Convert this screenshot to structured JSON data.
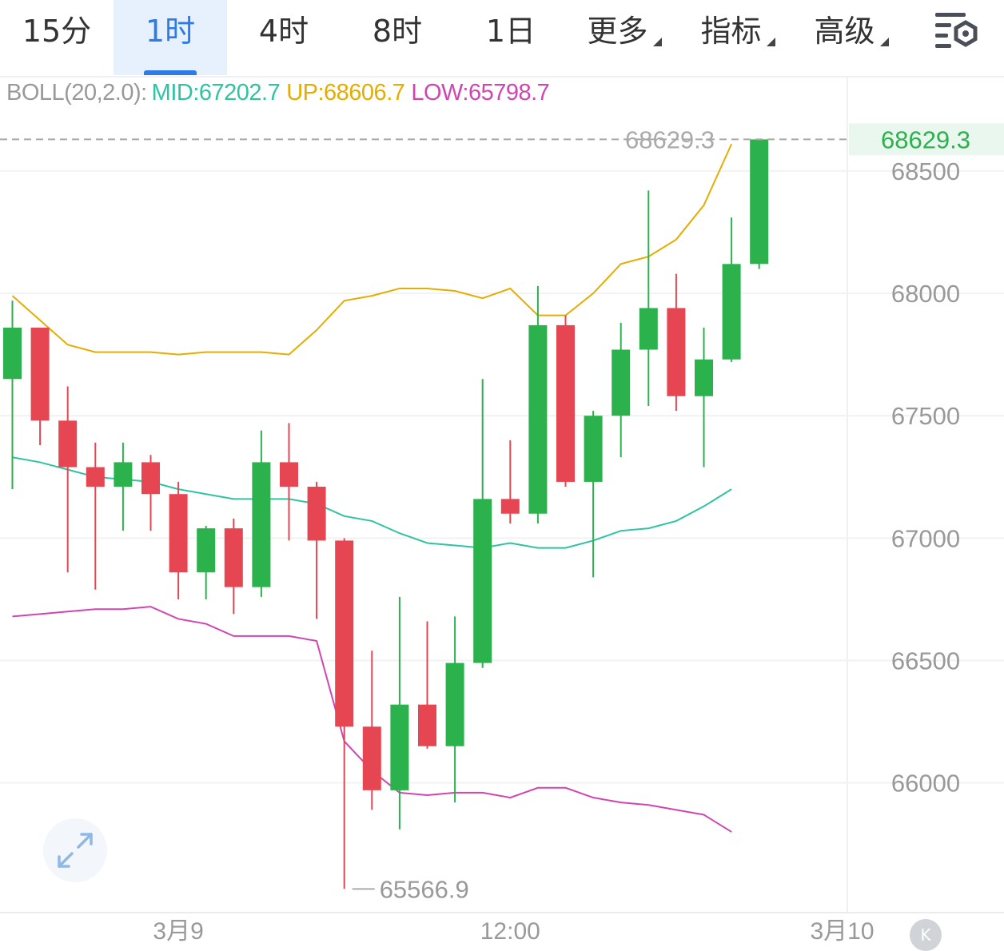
{
  "tabs": [
    {
      "label": "15分",
      "active": false,
      "dropdown": false
    },
    {
      "label": "1时",
      "active": true,
      "dropdown": false
    },
    {
      "label": "4时",
      "active": false,
      "dropdown": false
    },
    {
      "label": "8时",
      "active": false,
      "dropdown": false
    },
    {
      "label": "1日",
      "active": false,
      "dropdown": false
    },
    {
      "label": "更多",
      "active": false,
      "dropdown": true
    },
    {
      "label": "指标",
      "active": false,
      "dropdown": true
    },
    {
      "label": "高级",
      "active": false,
      "dropdown": true
    }
  ],
  "settings_icon": "chart-settings-icon",
  "indicator": {
    "label": "BOLL(20,2.0):",
    "mid": "MID:67202.7",
    "up": "UP:68606.7",
    "low": "LOW:65798.7"
  },
  "expand_icon": "expand-arrows-icon",
  "badge": "K",
  "chart_data": {
    "type": "candlestick",
    "colors": {
      "up": "#2bb24c",
      "down": "#e64552",
      "mid": "#2fc3a4",
      "upper": "#e6ac00",
      "lower": "#d046b0",
      "last_price": "#2bb24c"
    },
    "y_ticks": [
      "68500",
      "68000",
      "67500",
      "67000",
      "66500",
      "66000"
    ],
    "y_tick_values": [
      68500,
      68000,
      67500,
      67000,
      66500,
      66000
    ],
    "ylim": [
      65470,
      68885
    ],
    "x_tick_labels": [
      "3月9",
      "12:00",
      "3月10"
    ],
    "x_tick_index": [
      6,
      18,
      30
    ],
    "last_price": "68629.3",
    "last_price_value": 68629.3,
    "min_label": "65566.9",
    "min_value": 65566.9,
    "min_index": 12,
    "candles": [
      {
        "o": 67650,
        "h": 67970,
        "l": 67200,
        "c": 67860
      },
      {
        "o": 67860,
        "h": 67860,
        "l": 67380,
        "c": 67480
      },
      {
        "o": 67480,
        "h": 67620,
        "l": 66860,
        "c": 67290
      },
      {
        "o": 67290,
        "h": 67390,
        "l": 66790,
        "c": 67210
      },
      {
        "o": 67210,
        "h": 67390,
        "l": 67030,
        "c": 67310
      },
      {
        "o": 67310,
        "h": 67340,
        "l": 67030,
        "c": 67180
      },
      {
        "o": 67180,
        "h": 67230,
        "l": 66750,
        "c": 66860
      },
      {
        "o": 66860,
        "h": 67050,
        "l": 66750,
        "c": 67040
      },
      {
        "o": 67040,
        "h": 67080,
        "l": 66690,
        "c": 66800
      },
      {
        "o": 66800,
        "h": 67440,
        "l": 66760,
        "c": 67310
      },
      {
        "o": 67310,
        "h": 67470,
        "l": 66990,
        "c": 67210
      },
      {
        "o": 67210,
        "h": 67230,
        "l": 66670,
        "c": 66990
      },
      {
        "o": 66990,
        "h": 67000,
        "l": 65567,
        "c": 66230
      },
      {
        "o": 66230,
        "h": 66540,
        "l": 65890,
        "c": 65970
      },
      {
        "o": 65970,
        "h": 66760,
        "l": 65810,
        "c": 66320
      },
      {
        "o": 66320,
        "h": 66660,
        "l": 66140,
        "c": 66150
      },
      {
        "o": 66150,
        "h": 66680,
        "l": 65920,
        "c": 66490
      },
      {
        "o": 66490,
        "h": 67650,
        "l": 66470,
        "c": 67160
      },
      {
        "o": 67160,
        "h": 67400,
        "l": 67060,
        "c": 67100
      },
      {
        "o": 67100,
        "h": 68030,
        "l": 67060,
        "c": 67870
      },
      {
        "o": 67870,
        "h": 67910,
        "l": 67210,
        "c": 67230
      },
      {
        "o": 67230,
        "h": 67520,
        "l": 66840,
        "c": 67500
      },
      {
        "o": 67500,
        "h": 67880,
        "l": 67330,
        "c": 67770
      },
      {
        "o": 67770,
        "h": 68420,
        "l": 67540,
        "c": 67940
      },
      {
        "o": 67940,
        "h": 68080,
        "l": 67520,
        "c": 67580
      },
      {
        "o": 67580,
        "h": 67860,
        "l": 67290,
        "c": 67730
      },
      {
        "o": 67730,
        "h": 68310,
        "l": 67720,
        "c": 68120
      },
      {
        "o": 68120,
        "h": 68629,
        "l": 68100,
        "c": 68629
      }
    ],
    "boll_mid": [
      67330,
      67310,
      67280,
      67250,
      67240,
      67230,
      67200,
      67180,
      67160,
      67160,
      67160,
      67140,
      67090,
      67070,
      67020,
      66980,
      66970,
      66960,
      66980,
      66960,
      66960,
      66990,
      67030,
      67040,
      67070,
      67130,
      67200
    ],
    "boll_upper": [
      67990,
      67890,
      67790,
      67760,
      67760,
      67760,
      67750,
      67760,
      67760,
      67760,
      67750,
      67850,
      67970,
      67990,
      68020,
      68020,
      68010,
      67980,
      68020,
      67910,
      67910,
      68000,
      68120,
      68150,
      68220,
      68360,
      68610
    ],
    "boll_lower": [
      66680,
      66690,
      66700,
      66710,
      66710,
      66720,
      66670,
      66650,
      66600,
      66600,
      66600,
      66580,
      66170,
      66050,
      65960,
      65950,
      65960,
      65960,
      65940,
      65980,
      65980,
      65940,
      65920,
      65910,
      65890,
      65870,
      65800
    ]
  }
}
